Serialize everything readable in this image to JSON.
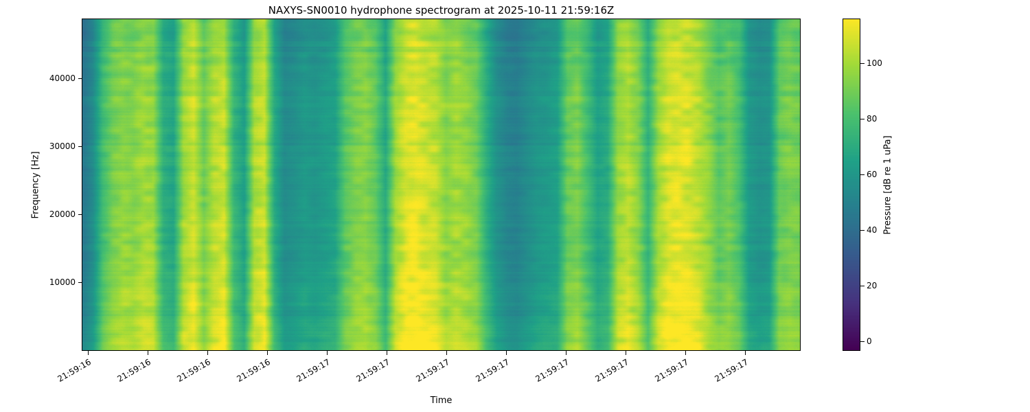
{
  "figure": {
    "background": "#ffffff",
    "text_color": "#000000"
  },
  "chart_data": {
    "type": "heatmap",
    "title": "NAXYS-SN0010 hydrophone spectrogram at 2025-10-11 21:59:16Z",
    "xlabel": "Time",
    "ylabel": "Frequency [Hz]",
    "colorbar_label": "Pressure [dB re 1 uPa]",
    "x_tick_labels": [
      "21:59:16",
      "21:59:16",
      "21:59:16",
      "21:59:16",
      "21:59:17",
      "21:59:17",
      "21:59:17",
      "21:59:17",
      "21:59:17",
      "21:59:17",
      "21:59:17",
      "21:59:17"
    ],
    "y_tick_values": [
      10000,
      20000,
      30000,
      40000
    ],
    "ylim": [
      0,
      48800
    ],
    "clim": [
      -3,
      116
    ],
    "colorbar_tick_values": [
      0,
      20,
      40,
      60,
      80,
      100
    ],
    "colormap": "viridis",
    "colormap_stops": [
      {
        "t": 0.0,
        "color": "#440154"
      },
      {
        "t": 0.14,
        "color": "#46327e"
      },
      {
        "t": 0.29,
        "color": "#365c8d"
      },
      {
        "t": 0.43,
        "color": "#277f8e"
      },
      {
        "t": 0.57,
        "color": "#1fa187"
      },
      {
        "t": 0.71,
        "color": "#4ac16d"
      },
      {
        "t": 0.86,
        "color": "#a0da39"
      },
      {
        "t": 1.0,
        "color": "#fde725"
      }
    ],
    "time_profile_db": [
      45,
      55,
      80,
      92,
      97,
      95,
      100,
      98,
      72,
      68,
      100,
      108,
      90,
      103,
      107,
      75,
      65,
      102,
      108,
      70,
      55,
      58,
      62,
      60,
      63,
      66,
      85,
      92,
      95,
      88,
      70,
      100,
      110,
      112,
      108,
      105,
      96,
      100,
      97,
      90,
      72,
      58,
      52,
      50,
      55,
      60,
      62,
      65,
      88,
      92,
      80,
      66,
      70,
      98,
      104,
      95,
      75,
      100,
      110,
      112,
      110,
      105,
      95,
      85,
      90,
      82,
      62,
      58,
      60,
      88,
      92,
      90
    ],
    "freq_envelope_db": [
      9,
      4,
      2,
      1,
      1,
      0,
      0,
      -1,
      -1,
      -2,
      -3,
      -5
    ]
  }
}
